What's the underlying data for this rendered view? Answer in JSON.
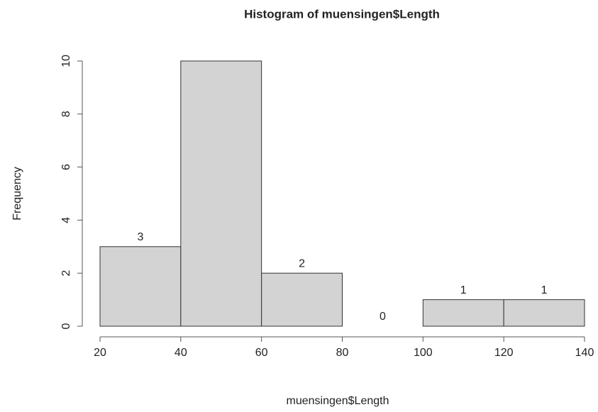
{
  "chart_data": {
    "type": "histogram",
    "title": "Histogram of muensingen$Length",
    "x_label": "muensingen$Length",
    "y_label": "Frequency",
    "bins": [
      20,
      40,
      60,
      80,
      100,
      120,
      140
    ],
    "values": [
      3,
      10,
      2,
      0,
      1,
      1
    ],
    "color": "#d3d3d3",
    "edge_color": "#333333",
    "xlim": [
      20,
      140
    ],
    "xticks": [
      20,
      40,
      60,
      80,
      100,
      120,
      140
    ],
    "ylim": [
      0,
      10
    ],
    "yticks": [
      0,
      2,
      4,
      6,
      8,
      10
    ],
    "grid": false
  }
}
